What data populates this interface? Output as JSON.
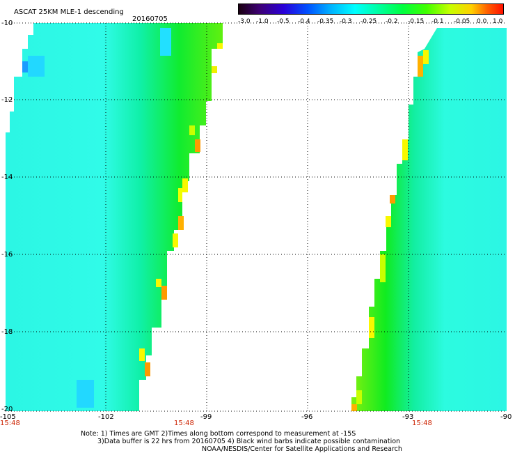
{
  "header": {
    "title": "ASCAT 25KM MLE-1 descending",
    "date": "20160705"
  },
  "colorbar": {
    "ticks": [
      "-3.0",
      "-1.0",
      "-0.5",
      "-0.4",
      "-0.35",
      "-0.3",
      "-0.25",
      "-0.2",
      "-0.15",
      "-0.1",
      "-0.05",
      "0.0",
      "1.0"
    ]
  },
  "map": {
    "lat_labels": [
      "-10",
      "-12",
      "-14",
      "-16",
      "-18",
      "-20"
    ],
    "lon_labels": [
      "-105",
      "-102",
      "-99",
      "-96",
      "-93",
      "-90"
    ],
    "time_labels": [
      "15:48",
      "15:48",
      "15:48"
    ],
    "gridline_style": "dotted",
    "colors": {
      "cyan": "#2cfbe4",
      "teal": "#15f0c0",
      "green": "#10ee10",
      "yellow_green": "#a8ff00",
      "yellow": "#f8f800",
      "orange": "#ff9a00",
      "blue": "#1a9cff"
    }
  },
  "notes": {
    "line1": "Note: 1) Times are GMT 2)Times along bottom correspond to measurement at -15S",
    "line2": "3)Data buffer is 22 hrs from 20160705 4) Black wind barbs indicate possible contamination",
    "line3": "NOAA/NESDIS/Center for Satellite Applications and Research"
  }
}
